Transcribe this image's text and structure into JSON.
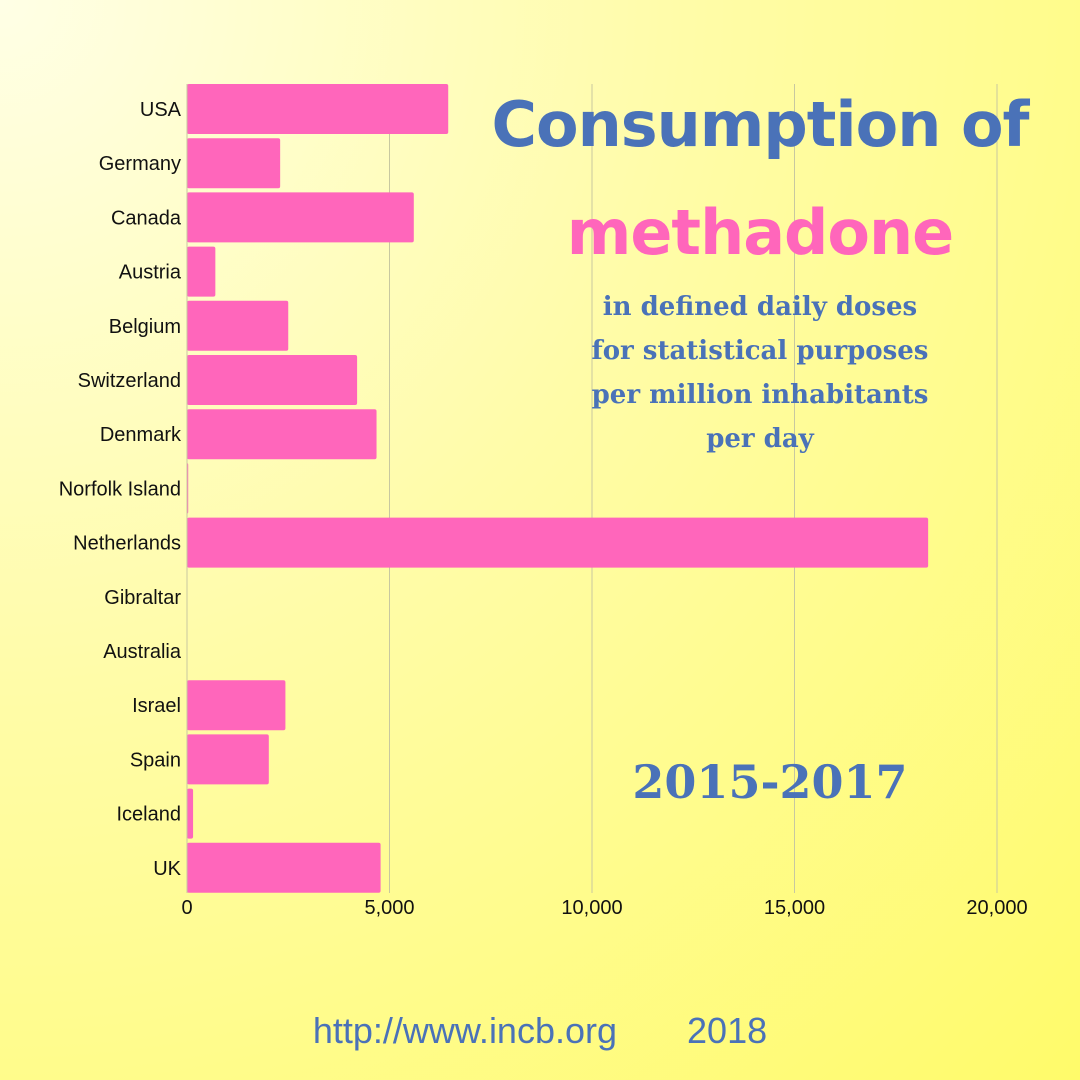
{
  "title": {
    "line1": "Consumption of",
    "line2": "methadone",
    "subtitle_lines": [
      "in defined daily doses",
      "for statistical purposes",
      "per million inhabitants",
      "per day"
    ],
    "period": "2015-2017"
  },
  "footer": {
    "source": "http://www.incb.org",
    "year": "2018"
  },
  "colors": {
    "bar": "#ff66bb",
    "title_blue": "#4a72b8",
    "title_pink": "#ff66bb",
    "grid": "#c8c8a0"
  },
  "chart_data": {
    "type": "bar",
    "orientation": "horizontal",
    "title": "Consumption of methadone",
    "categories": [
      "USA",
      "Germany",
      "Canada",
      "Austria",
      "Belgium",
      "Switzerland",
      "Denmark",
      "Norfolk Island",
      "Netherlands",
      "Gibraltar",
      "Australia",
      "Israel",
      "Spain",
      "Iceland",
      "UK"
    ],
    "values": [
      6450,
      2300,
      5600,
      700,
      2500,
      4200,
      4680,
      30,
      18300,
      0,
      0,
      2430,
      2020,
      150,
      4780
    ],
    "xlim": [
      0,
      20000
    ],
    "xticks": [
      0,
      5000,
      10000,
      15000,
      20000
    ],
    "xtick_labels": [
      "0",
      "5,000",
      "10,000",
      "15,000",
      "20,000"
    ],
    "grid": true
  }
}
